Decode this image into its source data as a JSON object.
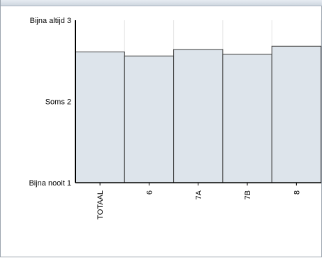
{
  "chart_data": {
    "type": "bar",
    "title": "",
    "xlabel": "",
    "ylabel": "",
    "ylim": [
      1,
      3
    ],
    "y_ticks": [
      {
        "value": 3,
        "label": "Bijna altijd 3"
      },
      {
        "value": 2,
        "label": "Soms 2"
      },
      {
        "value": 1,
        "label": "Bijna nooit 1"
      }
    ],
    "categories": [
      "TOTAAL",
      "6",
      "7A",
      "7B",
      "8"
    ],
    "values": [
      2.61,
      2.56,
      2.64,
      2.58,
      2.68
    ],
    "grid": true,
    "legend": "none",
    "colors": {
      "bar_fill": "#dde4eb",
      "bar_stroke": "#3a3a3a",
      "axis": "#000000",
      "grid": "#e4e4e4"
    }
  }
}
